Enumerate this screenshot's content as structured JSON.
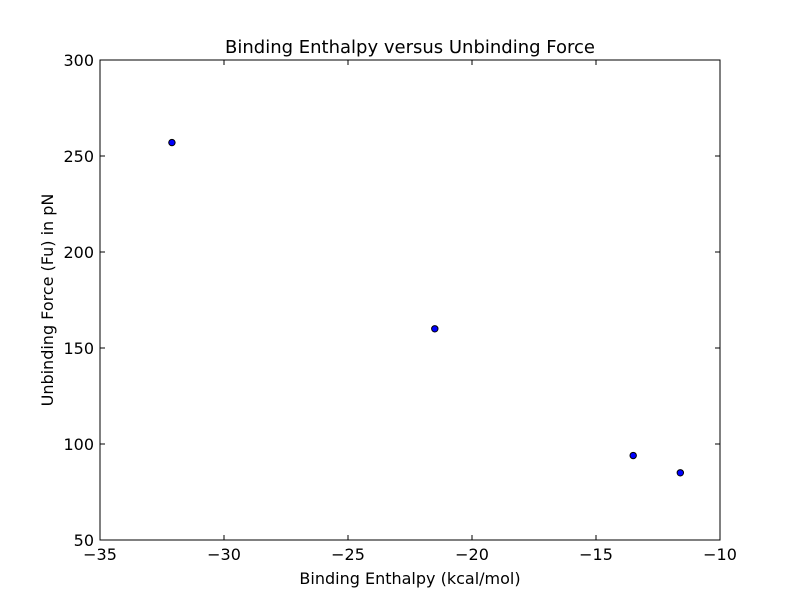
{
  "chart_data": {
    "type": "scatter",
    "title": "Binding Enthalpy versus Unbinding Force",
    "xlabel": "Binding Enthalpy (kcal/mol)",
    "ylabel": "Unbinding Force (Fu) in pN",
    "xlim": [
      -35,
      -10
    ],
    "ylim": [
      50,
      300
    ],
    "x_ticks": [
      -35,
      -30,
      -25,
      -20,
      -15,
      -10
    ],
    "x_tick_labels": [
      "−35",
      "−30",
      "−25",
      "−20",
      "−15",
      "−10"
    ],
    "y_ticks": [
      50,
      100,
      150,
      200,
      250,
      300
    ],
    "y_tick_labels": [
      "50",
      "100",
      "150",
      "200",
      "250",
      "300"
    ],
    "grid": false,
    "marker_color": "#0000ff",
    "marker_edge_color": "#000000",
    "points": [
      {
        "x": -32.1,
        "y": 257
      },
      {
        "x": -21.5,
        "y": 160
      },
      {
        "x": -13.5,
        "y": 94
      },
      {
        "x": -11.6,
        "y": 85
      }
    ]
  }
}
